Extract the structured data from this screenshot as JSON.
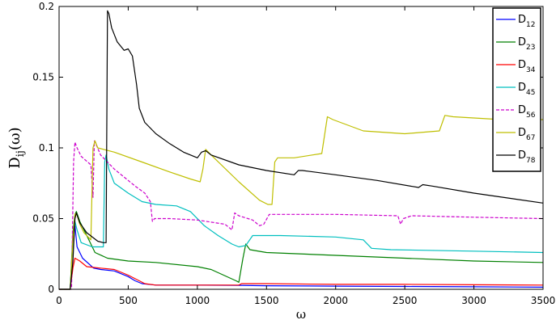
{
  "chart_data": {
    "type": "line",
    "xlabel": "ω",
    "ylabel": "D_ij(ω)",
    "xlim": [
      0,
      3500
    ],
    "ylim": [
      0,
      0.2
    ],
    "x_ticks": [
      {
        "value": 0,
        "label": "0"
      },
      {
        "value": 500,
        "label": "500"
      },
      {
        "value": 1000,
        "label": "1000"
      },
      {
        "value": 1500,
        "label": "1500"
      },
      {
        "value": 2000,
        "label": "2000"
      },
      {
        "value": 2500,
        "label": "2500"
      },
      {
        "value": 3000,
        "label": "3000"
      },
      {
        "value": 3500,
        "label": "3500"
      }
    ],
    "y_ticks": [
      {
        "value": 0,
        "label": "0"
      },
      {
        "value": 0.05,
        "label": "0.05"
      },
      {
        "value": 0.1,
        "label": "0.1"
      },
      {
        "value": 0.15,
        "label": "0.15"
      },
      {
        "value": 0.2,
        "label": "0.2"
      }
    ],
    "grid": false,
    "legend_position": "top-right",
    "series": [
      {
        "name": "D",
        "subscript": "12",
        "color": "#0000FF",
        "dash": "solid",
        "points": [
          [
            0,
            0
          ],
          [
            80,
            0
          ],
          [
            105,
            0.04
          ],
          [
            115,
            0.045
          ],
          [
            130,
            0.03
          ],
          [
            170,
            0.022
          ],
          [
            250,
            0.015
          ],
          [
            300,
            0.014
          ],
          [
            400,
            0.013
          ],
          [
            500,
            0.009
          ],
          [
            550,
            0.006
          ],
          [
            600,
            0.004
          ],
          [
            700,
            0.003
          ],
          [
            1000,
            0.003
          ],
          [
            1300,
            0.0028
          ],
          [
            1500,
            0.0025
          ],
          [
            2000,
            0.0022
          ],
          [
            2500,
            0.002
          ],
          [
            3000,
            0.0018
          ],
          [
            3500,
            0.0015
          ]
        ]
      },
      {
        "name": "D",
        "subscript": "23",
        "color": "#008000",
        "dash": "solid",
        "points": [
          [
            0,
            0
          ],
          [
            80,
            0
          ],
          [
            100,
            0.04
          ],
          [
            115,
            0.053
          ],
          [
            125,
            0.055
          ],
          [
            150,
            0.048
          ],
          [
            200,
            0.038
          ],
          [
            260,
            0.026
          ],
          [
            350,
            0.022
          ],
          [
            500,
            0.02
          ],
          [
            700,
            0.019
          ],
          [
            1000,
            0.016
          ],
          [
            1100,
            0.014
          ],
          [
            1280,
            0.006
          ],
          [
            1300,
            0.005
          ],
          [
            1330,
            0.022
          ],
          [
            1350,
            0.032
          ],
          [
            1380,
            0.028
          ],
          [
            1500,
            0.026
          ],
          [
            2000,
            0.024
          ],
          [
            2500,
            0.022
          ],
          [
            3000,
            0.02
          ],
          [
            3500,
            0.019
          ]
        ]
      },
      {
        "name": "D",
        "subscript": "34",
        "color": "#FF0000",
        "dash": "solid",
        "points": [
          [
            0,
            0
          ],
          [
            80,
            0
          ],
          [
            100,
            0.015
          ],
          [
            115,
            0.022
          ],
          [
            150,
            0.02
          ],
          [
            200,
            0.016
          ],
          [
            300,
            0.015
          ],
          [
            400,
            0.014
          ],
          [
            500,
            0.01
          ],
          [
            580,
            0.006
          ],
          [
            620,
            0.004
          ],
          [
            700,
            0.003
          ],
          [
            1000,
            0.003
          ],
          [
            1300,
            0.003
          ],
          [
            1320,
            0.004
          ],
          [
            1500,
            0.004
          ],
          [
            2000,
            0.0035
          ],
          [
            2500,
            0.0035
          ],
          [
            3000,
            0.0032
          ],
          [
            3500,
            0.003
          ]
        ]
      },
      {
        "name": "D",
        "subscript": "45",
        "color": "#00BFBF",
        "dash": "solid",
        "points": [
          [
            0,
            0
          ],
          [
            80,
            0
          ],
          [
            100,
            0.035
          ],
          [
            115,
            0.048
          ],
          [
            130,
            0.042
          ],
          [
            160,
            0.033
          ],
          [
            240,
            0.03
          ],
          [
            320,
            0.03
          ],
          [
            330,
            0.09
          ],
          [
            340,
            0.095
          ],
          [
            360,
            0.085
          ],
          [
            400,
            0.075
          ],
          [
            500,
            0.068
          ],
          [
            600,
            0.062
          ],
          [
            700,
            0.06
          ],
          [
            850,
            0.059
          ],
          [
            950,
            0.055
          ],
          [
            1050,
            0.045
          ],
          [
            1150,
            0.038
          ],
          [
            1250,
            0.032
          ],
          [
            1300,
            0.03
          ],
          [
            1350,
            0.031
          ],
          [
            1400,
            0.038
          ],
          [
            1600,
            0.038
          ],
          [
            2000,
            0.037
          ],
          [
            2200,
            0.035
          ],
          [
            2260,
            0.029
          ],
          [
            2400,
            0.028
          ],
          [
            3000,
            0.027
          ],
          [
            3500,
            0.026
          ]
        ]
      },
      {
        "name": "D",
        "subscript": "56",
        "color": "#CC00CC",
        "dash": "dashed",
        "points": [
          [
            0,
            0
          ],
          [
            90,
            0
          ],
          [
            105,
            0.09
          ],
          [
            115,
            0.104
          ],
          [
            130,
            0.1
          ],
          [
            160,
            0.094
          ],
          [
            230,
            0.088
          ],
          [
            245,
            0.065
          ],
          [
            255,
            0.105
          ],
          [
            270,
            0.102
          ],
          [
            300,
            0.095
          ],
          [
            400,
            0.085
          ],
          [
            550,
            0.073
          ],
          [
            620,
            0.068
          ],
          [
            660,
            0.062
          ],
          [
            675,
            0.048
          ],
          [
            690,
            0.05
          ],
          [
            800,
            0.05
          ],
          [
            1000,
            0.049
          ],
          [
            1200,
            0.046
          ],
          [
            1250,
            0.042
          ],
          [
            1270,
            0.054
          ],
          [
            1300,
            0.052
          ],
          [
            1400,
            0.049
          ],
          [
            1450,
            0.045
          ],
          [
            1480,
            0.046
          ],
          [
            1520,
            0.053
          ],
          [
            1700,
            0.053
          ],
          [
            2000,
            0.053
          ],
          [
            2450,
            0.052
          ],
          [
            2470,
            0.046
          ],
          [
            2490,
            0.05
          ],
          [
            2550,
            0.052
          ],
          [
            3000,
            0.051
          ],
          [
            3500,
            0.05
          ]
        ]
      },
      {
        "name": "D",
        "subscript": "67",
        "color": "#BFBF00",
        "dash": "solid",
        "points": [
          [
            0,
            0
          ],
          [
            80,
            0
          ],
          [
            100,
            0.035
          ],
          [
            115,
            0.053
          ],
          [
            125,
            0.054
          ],
          [
            150,
            0.046
          ],
          [
            180,
            0.04
          ],
          [
            230,
            0.035
          ],
          [
            245,
            0.1
          ],
          [
            260,
            0.105
          ],
          [
            280,
            0.1
          ],
          [
            400,
            0.097
          ],
          [
            600,
            0.09
          ],
          [
            800,
            0.083
          ],
          [
            950,
            0.078
          ],
          [
            1020,
            0.076
          ],
          [
            1040,
            0.085
          ],
          [
            1060,
            0.099
          ],
          [
            1100,
            0.095
          ],
          [
            1300,
            0.076
          ],
          [
            1450,
            0.063
          ],
          [
            1510,
            0.06
          ],
          [
            1540,
            0.06
          ],
          [
            1560,
            0.09
          ],
          [
            1580,
            0.093
          ],
          [
            1700,
            0.093
          ],
          [
            1900,
            0.096
          ],
          [
            1940,
            0.122
          ],
          [
            1980,
            0.12
          ],
          [
            2200,
            0.112
          ],
          [
            2500,
            0.11
          ],
          [
            2750,
            0.112
          ],
          [
            2790,
            0.123
          ],
          [
            2850,
            0.122
          ],
          [
            3200,
            0.12
          ],
          [
            3500,
            0.12
          ]
        ]
      },
      {
        "name": "D",
        "subscript": "78",
        "color": "#000000",
        "dash": "solid",
        "points": [
          [
            0,
            0
          ],
          [
            80,
            0
          ],
          [
            100,
            0.02
          ],
          [
            115,
            0.05
          ],
          [
            125,
            0.054
          ],
          [
            150,
            0.047
          ],
          [
            200,
            0.04
          ],
          [
            280,
            0.034
          ],
          [
            320,
            0.033
          ],
          [
            340,
            0.033
          ],
          [
            350,
            0.197
          ],
          [
            360,
            0.195
          ],
          [
            380,
            0.185
          ],
          [
            420,
            0.175
          ],
          [
            470,
            0.169
          ],
          [
            500,
            0.17
          ],
          [
            530,
            0.165
          ],
          [
            560,
            0.145
          ],
          [
            580,
            0.128
          ],
          [
            620,
            0.118
          ],
          [
            700,
            0.11
          ],
          [
            800,
            0.103
          ],
          [
            900,
            0.097
          ],
          [
            1000,
            0.093
          ],
          [
            1030,
            0.097
          ],
          [
            1060,
            0.098
          ],
          [
            1100,
            0.095
          ],
          [
            1300,
            0.088
          ],
          [
            1500,
            0.084
          ],
          [
            1700,
            0.081
          ],
          [
            1730,
            0.084
          ],
          [
            1760,
            0.084
          ],
          [
            2000,
            0.081
          ],
          [
            2300,
            0.077
          ],
          [
            2600,
            0.072
          ],
          [
            2630,
            0.074
          ],
          [
            2700,
            0.073
          ],
          [
            3000,
            0.068
          ],
          [
            3500,
            0.061
          ]
        ]
      }
    ]
  }
}
